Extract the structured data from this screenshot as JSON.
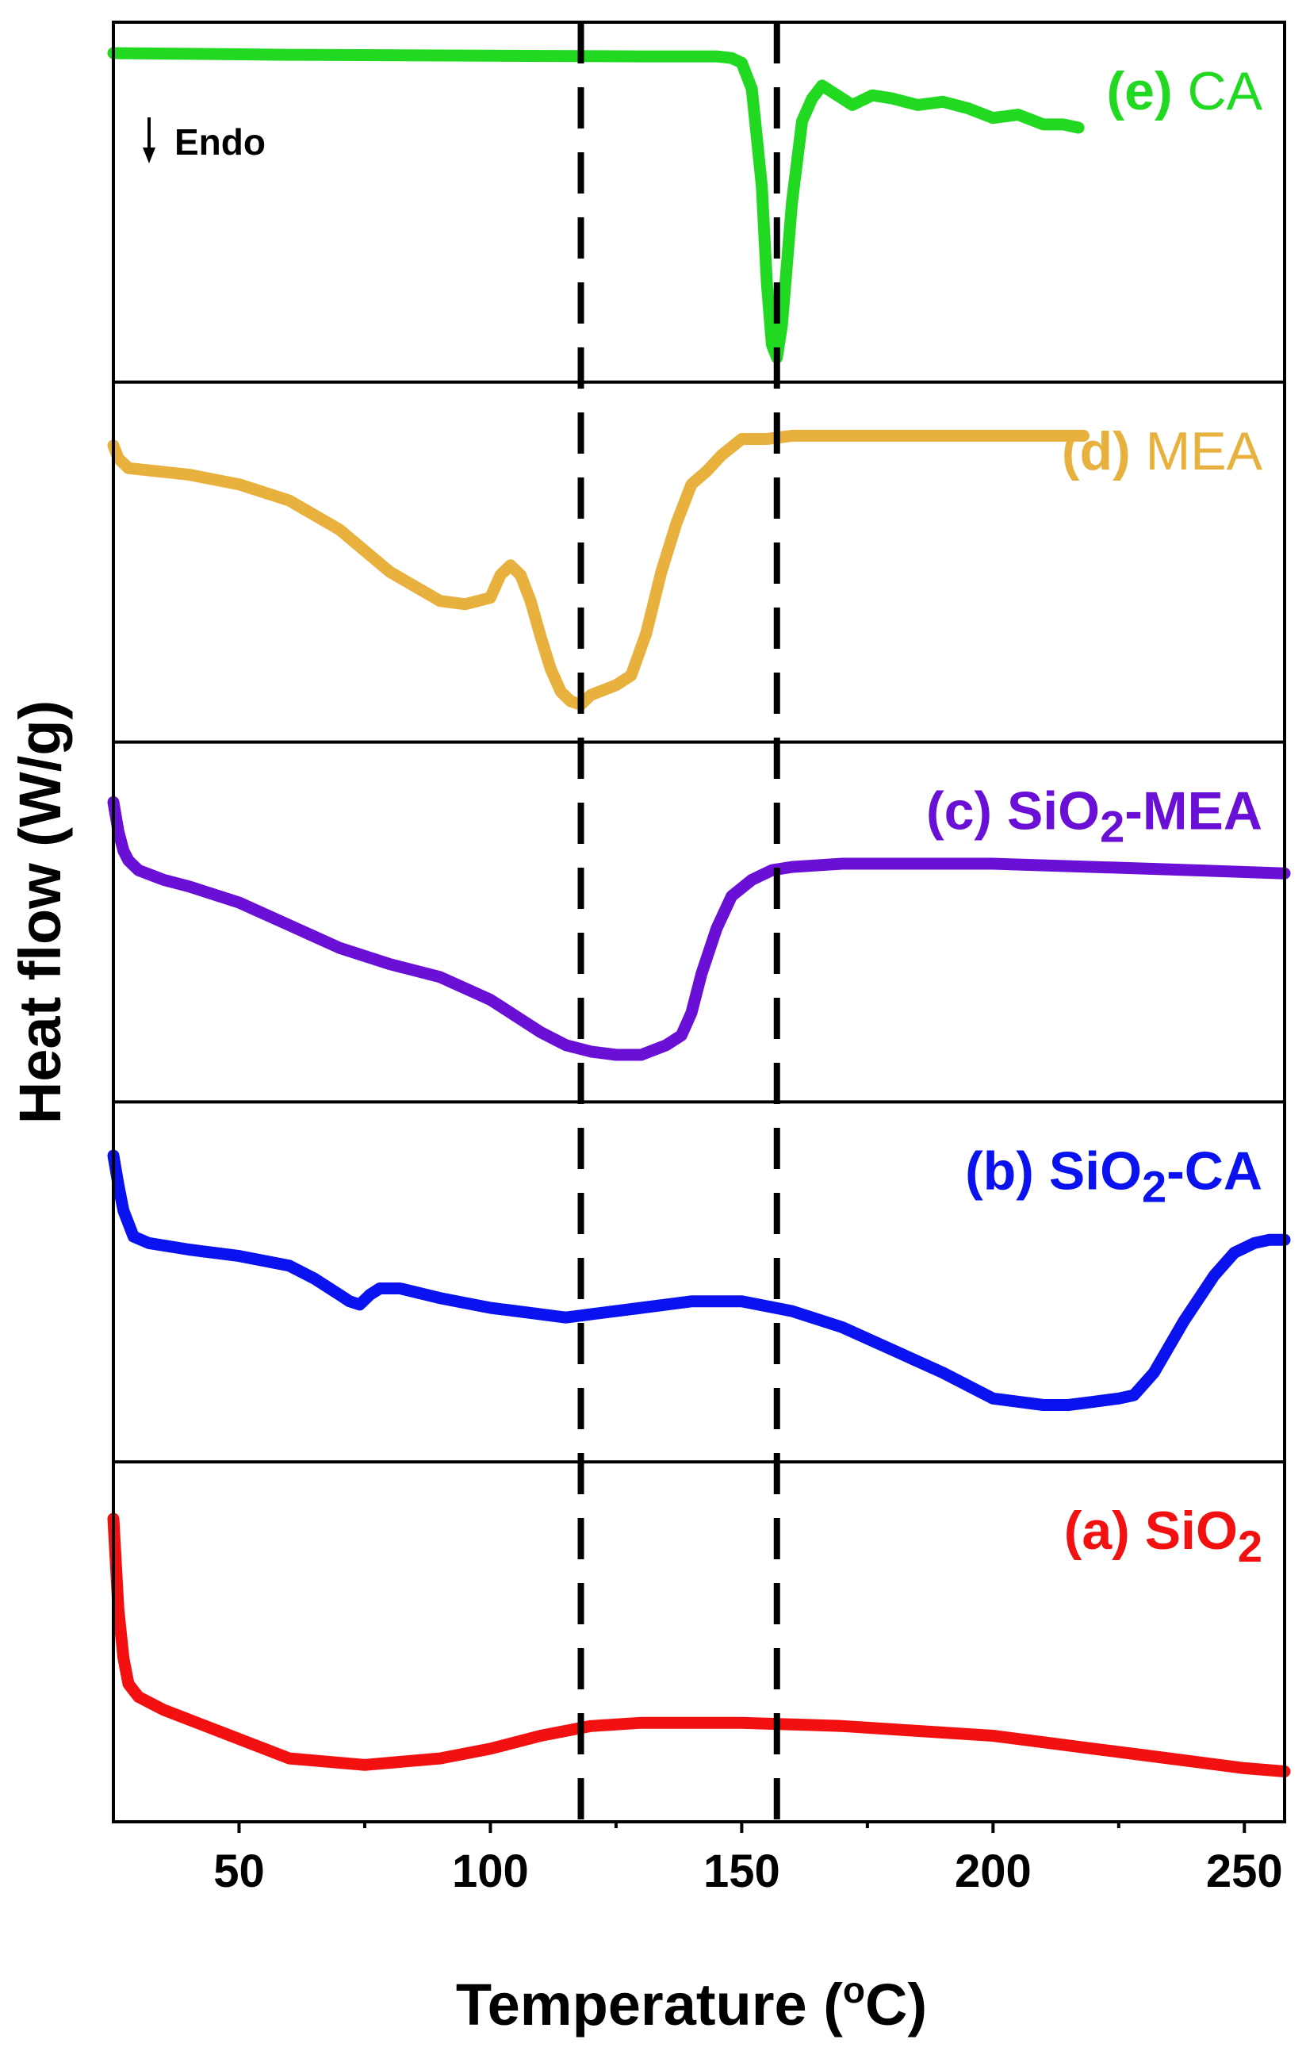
{
  "chart_data": {
    "type": "line",
    "ylabel": "Heat flow (W/g)",
    "xlabel": "Temperature (",
    "xlabel_sup": "o",
    "xlabel_end": "C)",
    "xlim": [
      25,
      258
    ],
    "xticks": [
      50,
      100,
      150,
      200,
      250
    ],
    "xtick_labels": [
      "50",
      "100",
      "150",
      "200",
      "250"
    ],
    "annotation": "Endo",
    "reference_lines_x": [
      118,
      157
    ],
    "panels": [
      {
        "id": "e",
        "label_prefix": "(e)",
        "label_text": "CA",
        "label_sub": "",
        "label_suffix": "",
        "color": "#22d922",
        "series": {
          "x": [
            25,
            60,
            100,
            130,
            145,
            148,
            150,
            152,
            154,
            155,
            156,
            157,
            158,
            160,
            162,
            164,
            166,
            170,
            172,
            176,
            180,
            185,
            190,
            195,
            200,
            205,
            210,
            214,
            217
          ],
          "y": [
            0.96,
            0.955,
            0.952,
            0.95,
            0.95,
            0.945,
            0.93,
            0.85,
            0.55,
            0.25,
            0.06,
            0.02,
            0.12,
            0.5,
            0.75,
            0.82,
            0.86,
            0.82,
            0.8,
            0.83,
            0.82,
            0.8,
            0.81,
            0.79,
            0.76,
            0.77,
            0.74,
            0.74,
            0.73
          ]
        }
      },
      {
        "id": "d",
        "label_prefix": "(d)",
        "label_text": "MEA",
        "label_sub": "",
        "label_suffix": "",
        "color": "#e8b03c",
        "series": {
          "x": [
            25,
            26,
            28,
            40,
            50,
            60,
            70,
            80,
            90,
            95,
            100,
            102,
            104,
            106,
            108,
            110,
            112,
            114,
            116,
            118,
            120,
            125,
            128,
            131,
            134,
            137,
            140,
            143,
            146,
            150,
            155,
            160,
            170,
            190,
            210,
            218
          ],
          "y": [
            0.86,
            0.82,
            0.79,
            0.77,
            0.74,
            0.69,
            0.6,
            0.47,
            0.38,
            0.37,
            0.39,
            0.46,
            0.49,
            0.46,
            0.38,
            0.27,
            0.17,
            0.1,
            0.07,
            0.06,
            0.09,
            0.12,
            0.15,
            0.28,
            0.47,
            0.62,
            0.74,
            0.78,
            0.83,
            0.88,
            0.88,
            0.89,
            0.89,
            0.89,
            0.89,
            0.89
          ]
        }
      },
      {
        "id": "c",
        "label_prefix": "(c)",
        "label_text": "SiO",
        "label_sub": "2",
        "label_suffix": "-MEA",
        "color": "#6a0fd6",
        "series": {
          "x": [
            25,
            26,
            27,
            28,
            30,
            35,
            40,
            50,
            60,
            70,
            80,
            90,
            100,
            110,
            115,
            120,
            125,
            130,
            135,
            138,
            140,
            142,
            145,
            148,
            152,
            156,
            160,
            170,
            180,
            200,
            220,
            240,
            258
          ],
          "y": [
            0.87,
            0.78,
            0.72,
            0.69,
            0.66,
            0.63,
            0.61,
            0.56,
            0.49,
            0.42,
            0.37,
            0.33,
            0.26,
            0.16,
            0.12,
            0.1,
            0.09,
            0.09,
            0.12,
            0.15,
            0.22,
            0.34,
            0.48,
            0.58,
            0.63,
            0.66,
            0.67,
            0.68,
            0.68,
            0.68,
            0.67,
            0.66,
            0.65
          ]
        }
      },
      {
        "id": "b",
        "label_prefix": "(b)",
        "label_text": "SiO",
        "label_sub": "2",
        "label_suffix": "-CA",
        "color": "#0a12f0",
        "series": {
          "x": [
            25,
            26,
            27,
            29,
            32,
            40,
            50,
            60,
            65,
            70,
            72,
            74,
            76,
            78,
            82,
            90,
            100,
            110,
            115,
            120,
            130,
            140,
            150,
            160,
            170,
            180,
            190,
            200,
            210,
            215,
            220,
            225,
            228,
            232,
            238,
            244,
            248,
            252,
            255,
            258
          ],
          "y": [
            0.89,
            0.8,
            0.72,
            0.64,
            0.62,
            0.6,
            0.58,
            0.55,
            0.51,
            0.46,
            0.44,
            0.43,
            0.46,
            0.48,
            0.48,
            0.45,
            0.42,
            0.4,
            0.39,
            0.4,
            0.42,
            0.44,
            0.44,
            0.41,
            0.36,
            0.29,
            0.22,
            0.14,
            0.12,
            0.12,
            0.13,
            0.14,
            0.15,
            0.22,
            0.38,
            0.52,
            0.59,
            0.62,
            0.63,
            0.63
          ]
        }
      },
      {
        "id": "a",
        "label_prefix": "(a)",
        "label_text": "SiO",
        "label_sub": "2",
        "label_suffix": "",
        "color": "#f21010",
        "series": {
          "x": [
            25,
            26,
            27,
            28,
            30,
            35,
            40,
            50,
            60,
            75,
            90,
            100,
            110,
            120,
            130,
            140,
            150,
            160,
            170,
            180,
            190,
            200,
            210,
            220,
            230,
            240,
            250,
            258
          ],
          "y": [
            0.88,
            0.6,
            0.45,
            0.37,
            0.33,
            0.29,
            0.26,
            0.2,
            0.14,
            0.12,
            0.14,
            0.17,
            0.21,
            0.24,
            0.25,
            0.25,
            0.25,
            0.245,
            0.24,
            0.23,
            0.22,
            0.21,
            0.19,
            0.17,
            0.15,
            0.13,
            0.11,
            0.1
          ]
        }
      }
    ]
  }
}
